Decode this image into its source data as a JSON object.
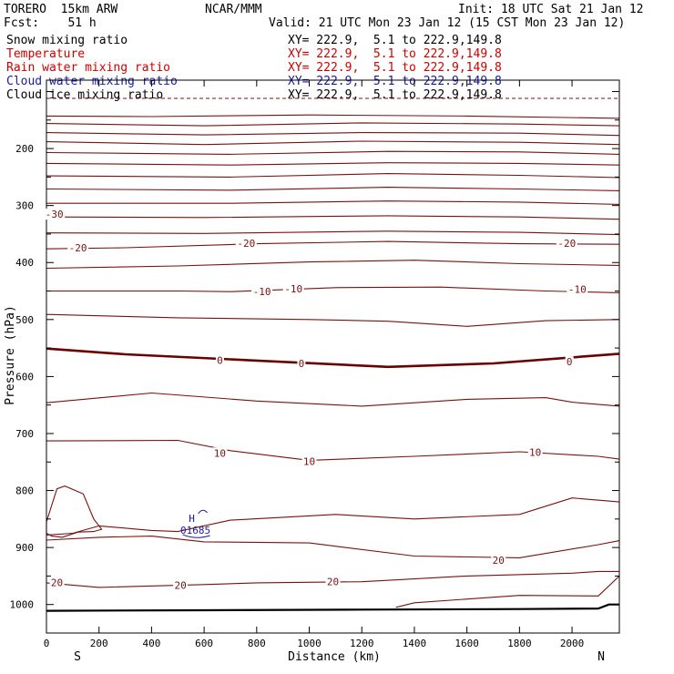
{
  "header": {
    "model": "TORERO  15km ARW",
    "center": "NCAR/MMM",
    "init": "Init: 18 UTC Sat 21 Jan 12",
    "fcst": "Fcst:    51 h",
    "valid": "Valid: 21 UTC Mon 23 Jan 12 (15 CST Mon 23 Jan 12)"
  },
  "legend": [
    {
      "name": "Snow mixing ratio",
      "xy": "XY= 222.9,  5.1 to 222.9,149.8",
      "color": "#000000"
    },
    {
      "name": "Temperature",
      "xy": "XY= 222.9,  5.1 to 222.9,149.8",
      "color": "#cc0000"
    },
    {
      "name": "Rain water mixing ratio",
      "xy": "XY= 222.9,  5.1 to 222.9,149.8",
      "color": "#cc0000"
    },
    {
      "name": "Cloud water mixing ratio",
      "xy": "XY= 222.9,  5.1 to 222.9,149.8",
      "color": "#1a1aa0"
    },
    {
      "name": "Cloud ice mixing ratio",
      "xy": "XY= 222.9,  5.1 to 222.9,149.8",
      "color": "#000000"
    }
  ],
  "colors": {
    "isotherm": "#7a1010",
    "freezing": "#6a0000",
    "terrain": "#000000",
    "cloud": "#1a1aa0"
  },
  "chart_data": {
    "type": "line",
    "xlabel": "Distance (km)",
    "ylabel": "Pressure (hPa)",
    "xlim": [
      0,
      2180
    ],
    "ylim": [
      1050,
      80
    ],
    "x_ticks": [
      0,
      200,
      400,
      600,
      800,
      1000,
      1200,
      1400,
      1600,
      1800,
      2000
    ],
    "y_ticks": [
      200,
      300,
      400,
      500,
      600,
      700,
      800,
      900,
      1000
    ],
    "end_labels": {
      "left": "S",
      "right": "N"
    },
    "isotherm_labels": [
      {
        "text": "-30",
        "x": 30,
        "p": 315
      },
      {
        "text": "-20",
        "x": 120,
        "p": 374
      },
      {
        "text": "-20",
        "x": 760,
        "p": 366
      },
      {
        "text": "-20",
        "x": 1980,
        "p": 366
      },
      {
        "text": "-10",
        "x": 820,
        "p": 451
      },
      {
        "text": "-10",
        "x": 940,
        "p": 446
      },
      {
        "text": "-10",
        "x": 2020,
        "p": 447
      },
      {
        "text": "0",
        "x": 660,
        "p": 571
      },
      {
        "text": "0",
        "x": 970,
        "p": 577
      },
      {
        "text": "0",
        "x": 1990,
        "p": 574
      },
      {
        "text": "10",
        "x": 660,
        "p": 734
      },
      {
        "text": "10",
        "x": 1000,
        "p": 749
      },
      {
        "text": "10",
        "x": 1860,
        "p": 733
      },
      {
        "text": "20",
        "x": 40,
        "p": 961
      },
      {
        "text": "20",
        "x": 510,
        "p": 966
      },
      {
        "text": "20",
        "x": 1090,
        "p": 960
      },
      {
        "text": "20",
        "x": 1720,
        "p": 922
      }
    ],
    "cloud_high": {
      "letter": "H",
      "value": "01685",
      "x": 560,
      "p": 855
    },
    "isotherms": [
      {
        "dashed": true,
        "p": [
          [
            0,
            112
          ],
          [
            2180,
            112
          ]
        ]
      },
      {
        "p": [
          [
            0,
            143
          ],
          [
            400,
            144
          ],
          [
            1000,
            141
          ],
          [
            1600,
            143
          ],
          [
            2180,
            147
          ]
        ]
      },
      {
        "p": [
          [
            0,
            156
          ],
          [
            600,
            160
          ],
          [
            1200,
            155
          ],
          [
            1800,
            157
          ],
          [
            2180,
            160
          ]
        ]
      },
      {
        "p": [
          [
            0,
            172
          ],
          [
            600,
            176
          ],
          [
            1200,
            172
          ],
          [
            1800,
            173
          ],
          [
            2180,
            177
          ]
        ]
      },
      {
        "p": [
          [
            0,
            188
          ],
          [
            600,
            193
          ],
          [
            1200,
            187
          ],
          [
            1800,
            189
          ],
          [
            2180,
            193
          ]
        ]
      },
      {
        "p": [
          [
            0,
            207
          ],
          [
            700,
            210
          ],
          [
            1300,
            205
          ],
          [
            1800,
            206
          ],
          [
            2180,
            210
          ]
        ]
      },
      {
        "p": [
          [
            0,
            226
          ],
          [
            700,
            229
          ],
          [
            1300,
            225
          ],
          [
            1800,
            226
          ],
          [
            2180,
            229
          ]
        ]
      },
      {
        "p": [
          [
            0,
            248
          ],
          [
            700,
            250
          ],
          [
            1300,
            244
          ],
          [
            1800,
            247
          ],
          [
            2180,
            251
          ]
        ]
      },
      {
        "p": [
          [
            0,
            271
          ],
          [
            700,
            273
          ],
          [
            1300,
            268
          ],
          [
            1800,
            271
          ],
          [
            2180,
            274
          ]
        ]
      },
      {
        "p": [
          [
            0,
            296
          ],
          [
            700,
            296
          ],
          [
            1300,
            292
          ],
          [
            1800,
            294
          ],
          [
            2180,
            298
          ]
        ]
      },
      {
        "p": [
          [
            0,
            320
          ],
          [
            600,
            321
          ],
          [
            1300,
            318
          ],
          [
            1800,
            320
          ],
          [
            2180,
            324
          ]
        ]
      },
      {
        "p": [
          [
            0,
            348
          ],
          [
            600,
            349
          ],
          [
            1300,
            345
          ],
          [
            1800,
            347
          ],
          [
            2180,
            351
          ]
        ]
      },
      {
        "p": [
          [
            0,
            376
          ],
          [
            300,
            374
          ],
          [
            800,
            367
          ],
          [
            1300,
            363
          ],
          [
            1800,
            367
          ],
          [
            2180,
            368
          ]
        ]
      },
      {
        "p": [
          [
            0,
            410
          ],
          [
            500,
            406
          ],
          [
            1000,
            399
          ],
          [
            1400,
            396
          ],
          [
            1800,
            402
          ],
          [
            2180,
            405
          ]
        ]
      },
      {
        "p": [
          [
            0,
            450
          ],
          [
            500,
            450
          ],
          [
            700,
            451
          ],
          [
            1100,
            444
          ],
          [
            1500,
            443
          ],
          [
            1900,
            450
          ],
          [
            2180,
            453
          ]
        ]
      },
      {
        "p": [
          [
            0,
            491
          ],
          [
            500,
            497
          ],
          [
            1000,
            500
          ],
          [
            1300,
            503
          ],
          [
            1600,
            512
          ],
          [
            1900,
            502
          ],
          [
            2180,
            500
          ]
        ]
      },
      {
        "bold": true,
        "p": [
          [
            0,
            551
          ],
          [
            300,
            561
          ],
          [
            800,
            572
          ],
          [
            1300,
            583
          ],
          [
            1700,
            577
          ],
          [
            2180,
            560
          ]
        ]
      },
      {
        "p": [
          [
            0,
            646
          ],
          [
            400,
            629
          ],
          [
            800,
            643
          ],
          [
            1200,
            652
          ],
          [
            1600,
            640
          ],
          [
            1900,
            637
          ],
          [
            2000,
            645
          ],
          [
            2180,
            652
          ]
        ]
      },
      {
        "p": [
          [
            0,
            713
          ],
          [
            500,
            712
          ],
          [
            700,
            730
          ],
          [
            1000,
            747
          ],
          [
            1400,
            740
          ],
          [
            1800,
            732
          ],
          [
            2100,
            740
          ],
          [
            2180,
            745
          ]
        ]
      },
      {
        "p": [
          [
            0,
            878
          ],
          [
            100,
            875
          ],
          [
            200,
            862
          ],
          [
            400,
            870
          ],
          [
            500,
            872
          ],
          [
            700,
            852
          ],
          [
            1100,
            842
          ],
          [
            1400,
            850
          ],
          [
            1800,
            842
          ],
          [
            2000,
            813
          ],
          [
            2180,
            820
          ]
        ]
      },
      {
        "p": [
          [
            0,
            887
          ],
          [
            200,
            882
          ],
          [
            400,
            880
          ],
          [
            600,
            890
          ],
          [
            1000,
            892
          ],
          [
            1400,
            915
          ],
          [
            1800,
            918
          ],
          [
            2100,
            895
          ],
          [
            2180,
            888
          ]
        ]
      },
      {
        "p": [
          [
            0,
            962
          ],
          [
            200,
            970
          ],
          [
            600,
            965
          ],
          [
            800,
            962
          ],
          [
            1200,
            960
          ],
          [
            1600,
            950
          ],
          [
            2000,
            945
          ],
          [
            2100,
            942
          ],
          [
            2180,
            942
          ]
        ]
      },
      {
        "p": [
          [
            1330,
            1005
          ],
          [
            1400,
            997
          ],
          [
            1800,
            984
          ],
          [
            2100,
            985
          ],
          [
            2180,
            950
          ]
        ]
      }
    ],
    "closed_contour": {
      "p": [
        [
          0,
          855
        ],
        [
          40,
          797
        ],
        [
          70,
          792
        ],
        [
          140,
          806
        ],
        [
          180,
          850
        ],
        [
          210,
          868
        ],
        [
          180,
          872
        ],
        [
          120,
          873
        ],
        [
          60,
          882
        ],
        [
          20,
          880
        ],
        [
          0,
          875
        ]
      ]
    },
    "terrain": {
      "p": [
        [
          0,
          1011
        ],
        [
          600,
          1010
        ],
        [
          1200,
          1009
        ],
        [
          1800,
          1008
        ],
        [
          2100,
          1007
        ],
        [
          2140,
          1000
        ],
        [
          2180,
          1000
        ]
      ]
    }
  }
}
